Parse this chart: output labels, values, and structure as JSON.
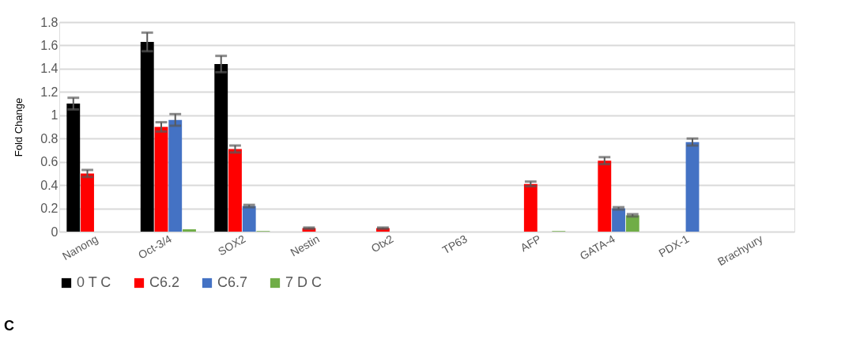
{
  "chart_data": {
    "type": "bar",
    "ylabel": "Fold Change",
    "categories": [
      "Nanong",
      "Oct-3/4",
      "SOX2",
      "Nestin",
      "Otx2",
      "TP63",
      "AFP",
      "GATA-4",
      "PDX-1",
      "Brachyury"
    ],
    "series": [
      {
        "name": "0 T C",
        "color": "#000000",
        "values": [
          1.1,
          1.63,
          1.44,
          null,
          null,
          null,
          null,
          null,
          null,
          null
        ],
        "errors": [
          0.05,
          0.08,
          0.07,
          null,
          null,
          null,
          null,
          null,
          null,
          null
        ]
      },
      {
        "name": "C6.2",
        "color": "#ff0000",
        "values": [
          0.5,
          0.9,
          0.71,
          0.03,
          0.03,
          null,
          0.41,
          0.61,
          null,
          null
        ],
        "errors": [
          0.03,
          0.04,
          0.03,
          0.005,
          0.005,
          null,
          0.02,
          0.03,
          null,
          null
        ]
      },
      {
        "name": "C6.7",
        "color": "#4472c4",
        "values": [
          null,
          0.96,
          0.22,
          null,
          null,
          null,
          null,
          0.2,
          0.77,
          null
        ],
        "errors": [
          null,
          0.05,
          0.01,
          null,
          null,
          null,
          null,
          0.01,
          0.03,
          null
        ]
      },
      {
        "name": "7 D C",
        "color": "#70ad47",
        "values": [
          null,
          0.02,
          0.005,
          null,
          null,
          null,
          0.005,
          0.14,
          null,
          null
        ],
        "errors": [
          null,
          null,
          null,
          null,
          null,
          null,
          null,
          0.01,
          null,
          null
        ]
      }
    ],
    "ylim": [
      0,
      1.8
    ],
    "yticks": [
      0,
      0.2,
      0.4,
      0.6,
      0.8,
      1,
      1.2,
      1.4,
      1.6,
      1.8
    ],
    "grid": "y",
    "legend": "bottom",
    "annotations": [
      "C"
    ]
  }
}
